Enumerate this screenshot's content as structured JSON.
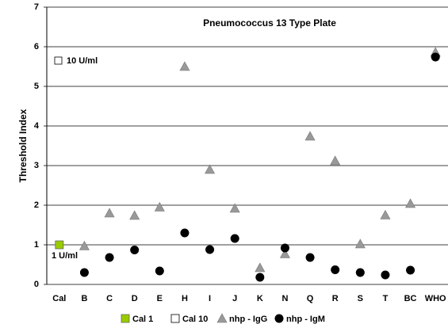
{
  "chart_data": {
    "type": "scatter",
    "title": "Pneumococcus 13 Type Plate",
    "y_label": "Threshold Index",
    "categories": [
      "Cal",
      "B",
      "C",
      "D",
      "E",
      "H",
      "I",
      "J",
      "K",
      "N",
      "Q",
      "R",
      "S",
      "T",
      "BC",
      "WHO"
    ],
    "series": [
      {
        "name": "Cal 1",
        "color": "#99cc00",
        "marker": "square",
        "values": [
          1.0,
          null,
          null,
          null,
          null,
          null,
          null,
          null,
          null,
          null,
          null,
          null,
          null,
          null,
          null,
          null
        ]
      },
      {
        "name": "Cal 10",
        "color": "#ffffff",
        "marker": "square",
        "values": [
          null,
          null,
          null,
          null,
          null,
          null,
          null,
          null,
          null,
          null,
          null,
          null,
          null,
          null,
          null,
          null
        ]
      },
      {
        "name": "nhp - IgG",
        "color": "#999999",
        "marker": "triangle",
        "values": [
          null,
          0.97,
          1.8,
          1.74,
          1.95,
          5.5,
          2.9,
          1.92,
          0.42,
          0.77,
          3.74,
          3.12,
          1.02,
          1.75,
          2.04,
          5.86
        ]
      },
      {
        "name": "nhp - IgM",
        "color": "#000000",
        "marker": "circle",
        "values": [
          null,
          0.3,
          0.68,
          0.87,
          0.34,
          1.3,
          0.88,
          1.16,
          0.18,
          0.92,
          0.68,
          0.37,
          0.3,
          0.24,
          0.36,
          5.74
        ]
      }
    ],
    "annotations": [
      "10 U/ml",
      "1 U/ml"
    ],
    "ylim": [
      0,
      7
    ],
    "yticks": [
      0,
      1,
      2,
      3,
      4,
      5,
      6,
      7
    ],
    "grid": true,
    "legend": "bottom"
  }
}
